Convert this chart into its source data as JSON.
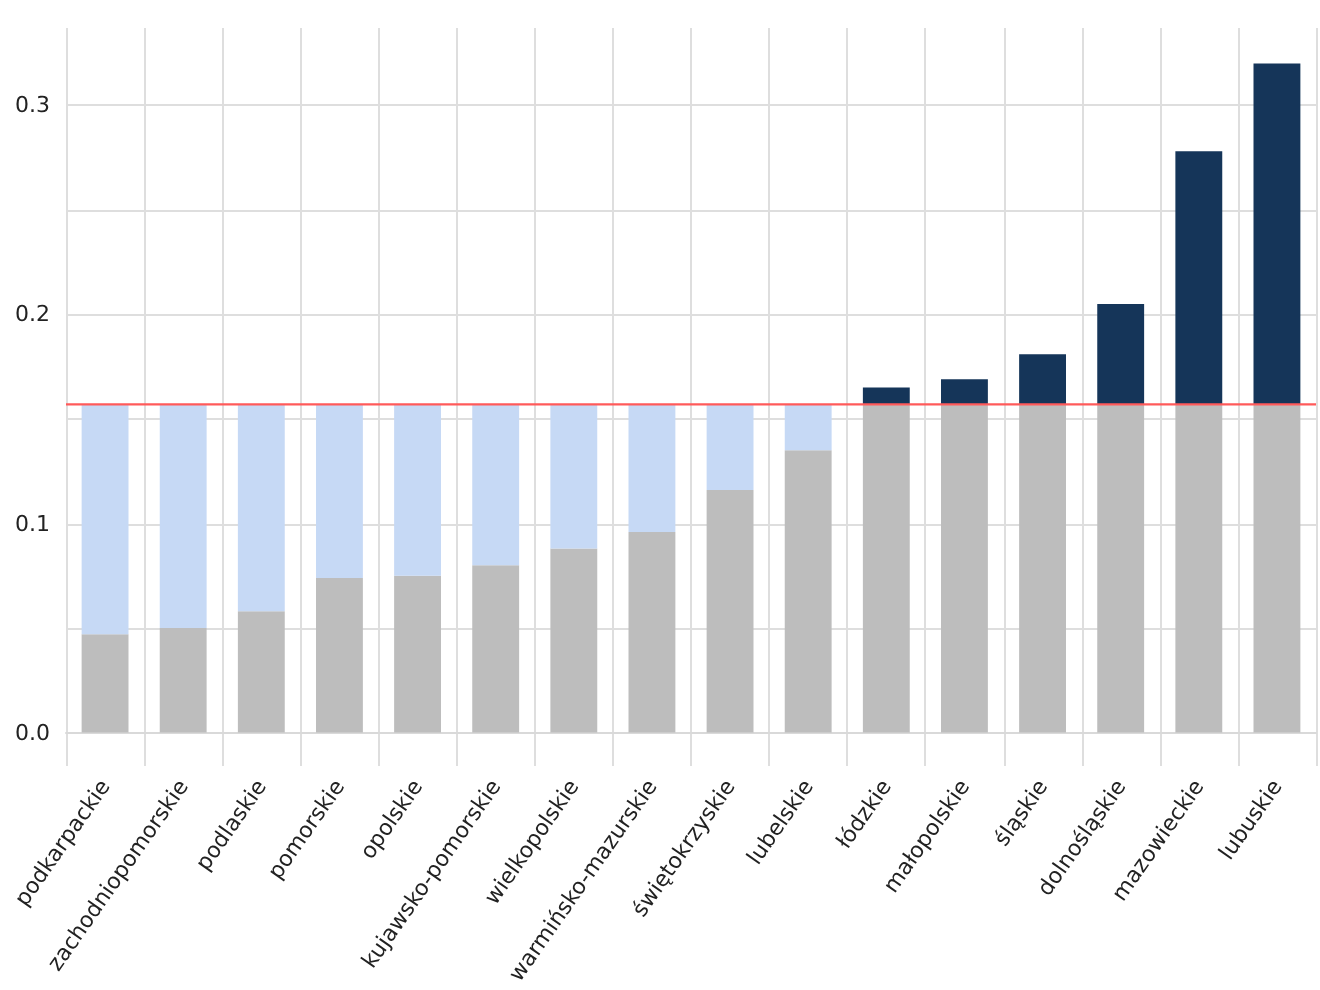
{
  "chart_data": {
    "type": "bar",
    "stacked": true,
    "categories": [
      "podkarpackie",
      "zachodniopomorskie",
      "podlaskie",
      "pomorskie",
      "opolskie",
      "kujawsko-pomorskie",
      "wielkopolskie",
      "warmińsko-mazurskie",
      "świętokrzyskie",
      "lubelskie",
      "łódzkie",
      "małopolskie",
      "śląskie",
      "dolnośląskie",
      "mazowieckie",
      "lubuskie"
    ],
    "series": [
      {
        "color": "#bdbdbd",
        "values": [
          0.047,
          0.05,
          0.058,
          0.074,
          0.075,
          0.08,
          0.088,
          0.096,
          0.116,
          0.135,
          0.157,
          0.157,
          0.157,
          0.157,
          0.157,
          0.157
        ]
      },
      {
        "color": "#c6d9f5",
        "values": [
          0.11,
          0.107,
          0.099,
          0.083,
          0.082,
          0.077,
          0.069,
          0.061,
          0.041,
          0.022,
          null,
          null,
          null,
          null,
          null,
          null
        ]
      },
      {
        "color": "#153559",
        "values": [
          null,
          null,
          null,
          null,
          null,
          null,
          null,
          null,
          null,
          null,
          0.008,
          0.012,
          0.024,
          0.048,
          0.121,
          0.163
        ]
      }
    ],
    "ylim": [
      -0.016,
      0.337
    ],
    "yticks": [
      {
        "value": 0,
        "label": "0.0"
      },
      {
        "value": 0.05,
        "label": null
      },
      {
        "value": 0.1,
        "label": "0.1"
      },
      {
        "value": 0.15,
        "label": null
      },
      {
        "value": 0.2,
        "label": "0.2"
      },
      {
        "value": 0.25,
        "label": null
      },
      {
        "value": 0.3,
        "label": "0.3"
      }
    ],
    "grid": true,
    "ref_lines": [
      {
        "axis": "y",
        "value": 0.157,
        "color": "#ff5a5a"
      }
    ]
  }
}
